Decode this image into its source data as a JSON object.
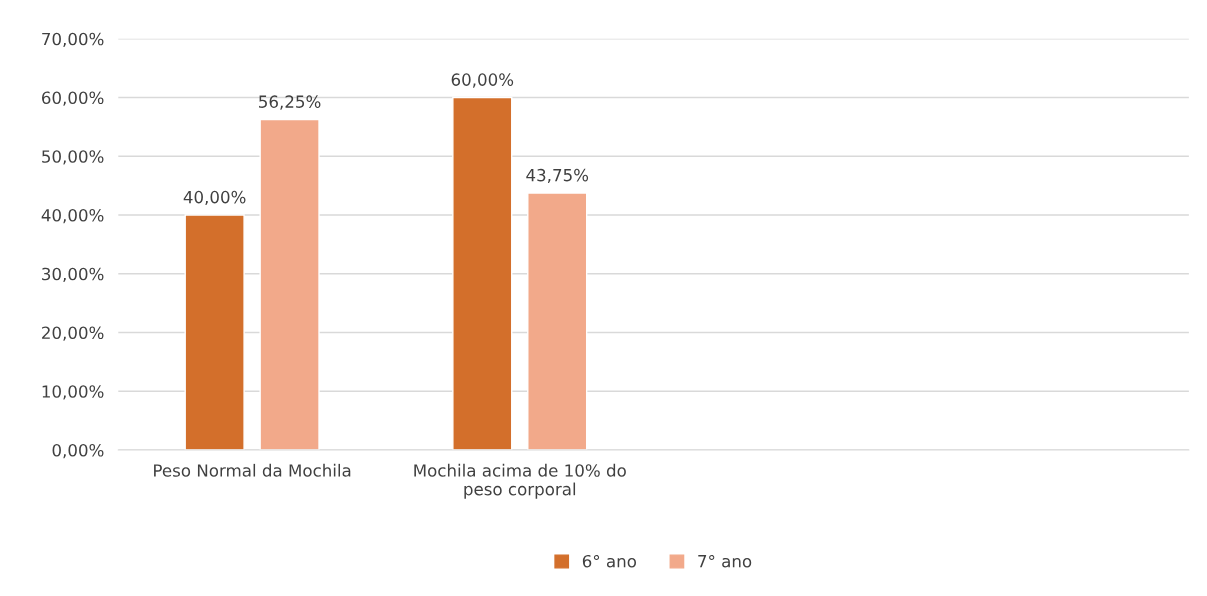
{
  "chart_data": {
    "type": "bar",
    "categories": [
      "Peso Normal da Mochila",
      "Mochila acima de 10% do peso corporal",
      null,
      null
    ],
    "series": [
      {
        "name": "6° ano",
        "color": "#d36f2b",
        "values": [
          40,
          60,
          null,
          null
        ],
        "value_labels": [
          "40,00%",
          "60,00%",
          null,
          null
        ]
      },
      {
        "name": "7° ano",
        "color": "#f2a98a",
        "values": [
          56.25,
          43.75,
          null,
          null
        ],
        "value_labels": [
          "56,25%",
          "43,75%",
          null,
          null
        ]
      }
    ],
    "ylim": [
      0,
      70
    ],
    "yticks": [
      {
        "value": 0,
        "label": "0,00%"
      },
      {
        "value": 10,
        "label": "10,00%"
      },
      {
        "value": 20,
        "label": "20,00%"
      },
      {
        "value": 30,
        "label": "30,00%"
      },
      {
        "value": 40,
        "label": "40,00%"
      },
      {
        "value": 50,
        "label": "50,00%"
      },
      {
        "value": 60,
        "label": "60,00%"
      },
      {
        "value": 70,
        "label": "70,00%"
      }
    ],
    "grid": "y",
    "legend": "bottom"
  }
}
